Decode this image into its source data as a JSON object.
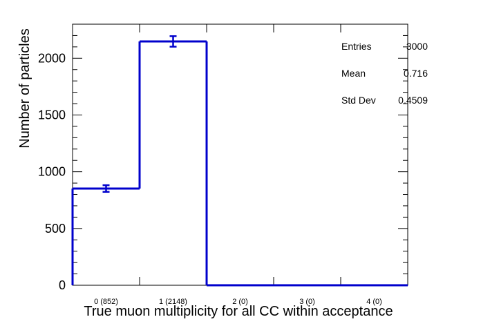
{
  "chart_data": {
    "type": "bar",
    "title": "",
    "xlabel": "True muon multiplicity for all CC within acceptance",
    "ylabel": "Number of particles",
    "categories": [
      "0 (852)",
      "1 (2148)",
      "2 (0)",
      "3 (0)",
      "4 (0)"
    ],
    "values": [
      852,
      2148,
      0,
      0,
      0
    ],
    "errors": [
      29.2,
      46.3,
      0,
      0,
      0
    ],
    "ylim": [
      0,
      2300
    ],
    "yticks": [
      "0",
      "500",
      "1000",
      "1500",
      "2000"
    ],
    "line_color": "#0000cc",
    "grid": false,
    "legend": "none",
    "stats": {
      "entries_label": "Entries",
      "entries_value": "3000",
      "mean_label": "Mean",
      "mean_value": "0.716",
      "std_label": "Std Dev",
      "std_value": "0.4509"
    }
  }
}
